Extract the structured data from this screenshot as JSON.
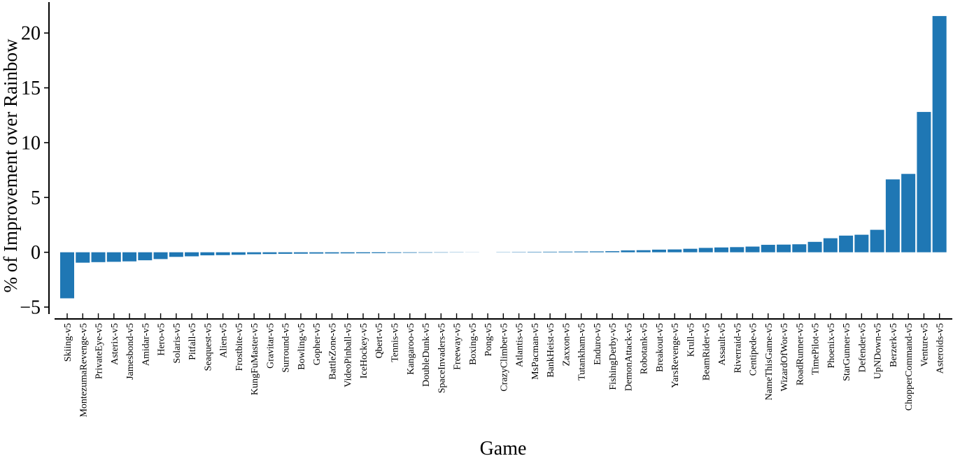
{
  "figure": {
    "background": "#ffffff"
  },
  "chart_data": {
    "type": "bar",
    "title": "",
    "xlabel": "Game",
    "ylabel": "% of Improvement over Rainbow",
    "ylim": [
      -5.5,
      22.5
    ],
    "yticks": [
      -5,
      0,
      5,
      10,
      15,
      20
    ],
    "grid": false,
    "legend": null,
    "bar_color": "#1f77b4",
    "axis_color": "#000000",
    "categories": [
      "Skiing-v5",
      "MontezumaRevenge-v5",
      "PrivateEye-v5",
      "Asterix-v5",
      "Jamesbond-v5",
      "Amidar-v5",
      "Hero-v5",
      "Solaris-v5",
      "Pitfall-v5",
      "Seaquest-v5",
      "Alien-v5",
      "Frostbite-v5",
      "KungFuMaster-v5",
      "Gravitar-v5",
      "Surround-v5",
      "Bowling-v5",
      "Gopher-v5",
      "BattleZone-v5",
      "VideoPinball-v5",
      "IceHockey-v5",
      "Qbert-v5",
      "Tennis-v5",
      "Kangaroo-v5",
      "DoubleDunk-v5",
      "SpaceInvaders-v5",
      "Freeway-v5",
      "Boxing-v5",
      "Pong-v5",
      "CrazyClimber-v5",
      "Atlantis-v5",
      "MsPacman-v5",
      "BankHeist-v5",
      "Zaxxon-v5",
      "Tutankham-v5",
      "Enduro-v5",
      "FishingDerby-v5",
      "DemonAttack-v5",
      "Robotank-v5",
      "Breakout-v5",
      "YarsRevenge-v5",
      "Krull-v5",
      "BeamRider-v5",
      "Assault-v5",
      "Riverraid-v5",
      "Centipede-v5",
      "NameThisGame-v5",
      "WizardOfWor-v5",
      "RoadRunner-v5",
      "TimePilot-v5",
      "Phoenix-v5",
      "StarGunner-v5",
      "Defender-v5",
      "UpNDown-v5",
      "Berzerk-v5",
      "ChopperCommand-v5",
      "Venture-v5",
      "Asteroids-v5"
    ],
    "values": [
      -4.2,
      -0.95,
      -0.9,
      -0.87,
      -0.83,
      -0.73,
      -0.62,
      -0.42,
      -0.37,
      -0.28,
      -0.26,
      -0.23,
      -0.18,
      -0.16,
      -0.14,
      -0.13,
      -0.12,
      -0.11,
      -0.1,
      -0.09,
      -0.08,
      -0.06,
      -0.05,
      -0.04,
      -0.03,
      -0.02,
      -0.01,
      0.0,
      0.02,
      0.03,
      0.04,
      0.05,
      0.06,
      0.07,
      0.08,
      0.1,
      0.17,
      0.19,
      0.24,
      0.26,
      0.32,
      0.4,
      0.44,
      0.47,
      0.52,
      0.68,
      0.7,
      0.73,
      0.95,
      1.28,
      1.52,
      1.6,
      2.05,
      6.65,
      7.15,
      12.8,
      21.55
    ]
  }
}
